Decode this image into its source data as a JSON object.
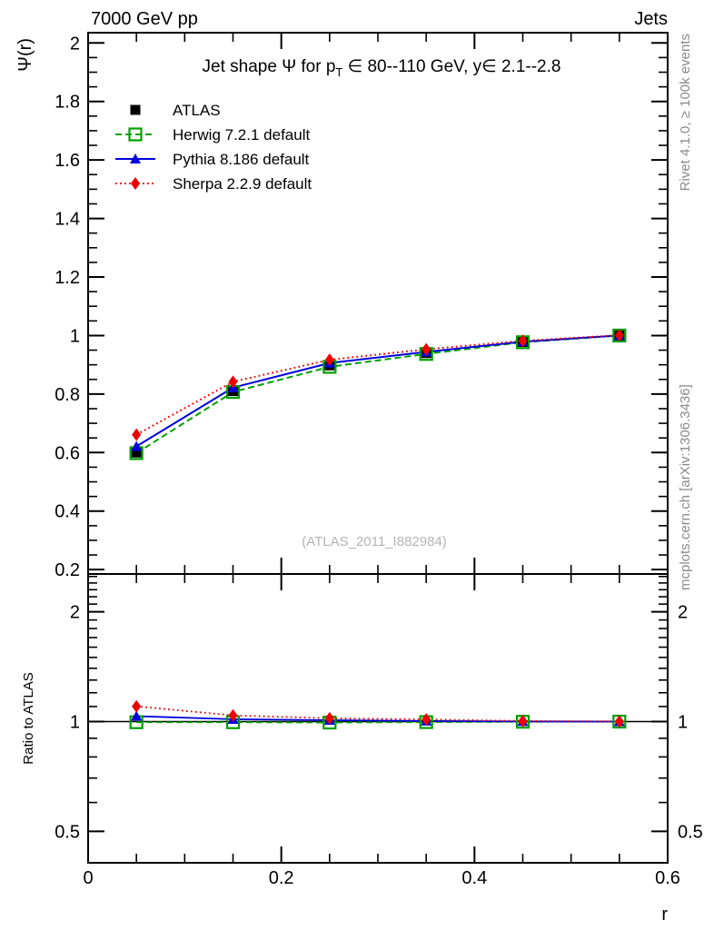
{
  "header": {
    "left": "7000 GeV pp",
    "right": "Jets"
  },
  "title": {
    "prefix": "Jet shape Ψ for p",
    "sub": "T",
    "suffix": " ∈ 80--110 GeV, y∈ 2.1--2.8"
  },
  "watermark": "(ATLAS_2011_I882984)",
  "side_notes": {
    "top": "Rivet 4.1.0, ≥ 100k events",
    "bottom": "mcplots.cern.ch [arXiv:1306.3436]"
  },
  "axes": {
    "x": {
      "label": "r",
      "min": 0,
      "max": 0.6,
      "major_ticks": [
        0,
        0.2,
        0.4,
        0.6
      ],
      "minor_step": 0.05
    },
    "y_main": {
      "label": "Ψ(r)",
      "min": 0.185,
      "max": 2.035,
      "major_ticks": [
        0.2,
        0.4,
        0.6,
        0.8,
        1,
        1.2,
        1.4,
        1.6,
        1.8,
        2
      ],
      "minor_step": 0.05
    },
    "y_ratio": {
      "label": "Ratio to ATLAS",
      "scale": "log",
      "min": 0.41,
      "max": 2.54,
      "major_ticks": [
        0.5,
        1,
        2
      ],
      "minor_ticks": [
        0.6,
        0.7,
        0.8,
        0.9,
        1.1,
        1.2,
        1.3,
        1.4,
        1.5,
        1.6,
        1.7,
        1.8,
        1.9,
        2.1,
        2.2,
        2.3,
        2.4,
        2.5
      ]
    }
  },
  "chart_data": {
    "type": "line",
    "title": "Jet shape Ψ for pT ∈ 80--110 GeV, y∈ 2.1--2.8",
    "xlabel": "r",
    "ylabel": "Ψ(r)",
    "ratio_label": "Ratio to ATLAS",
    "xlim": [
      0,
      0.6
    ],
    "ylim_main": [
      0.185,
      2.035
    ],
    "ylim_ratio_log": [
      0.41,
      2.54
    ],
    "grid": false,
    "legend_position": "top-left-inside",
    "x": [
      0.05,
      0.15,
      0.25,
      0.35,
      0.45,
      0.55
    ],
    "series": [
      {
        "name": "ATLAS",
        "color": "#000000",
        "marker": "square-filled",
        "line": "none",
        "values": [
          0.6,
          0.81,
          0.898,
          0.94,
          0.978,
          1.0
        ],
        "ratio": null
      },
      {
        "name": "Herwig 7.2.1 default",
        "color": "#00a000",
        "marker": "square-open",
        "line": "dashed",
        "values": [
          0.598,
          0.807,
          0.893,
          0.937,
          0.977,
          1.0
        ],
        "ratio": [
          0.996,
          0.996,
          0.994,
          0.997,
          0.999,
          1.0
        ]
      },
      {
        "name": "Pythia 8.186 default",
        "color": "#0000dd",
        "marker": "triangle-filled",
        "line": "solid",
        "values": [
          0.621,
          0.822,
          0.906,
          0.944,
          0.979,
          1.0
        ],
        "ratio": [
          1.035,
          1.015,
          1.009,
          1.004,
          1.001,
          1.0
        ]
      },
      {
        "name": "Sherpa 2.2.9 default",
        "color": "#ee0000",
        "marker": "diamond-filled",
        "line": "dotted",
        "values": [
          0.661,
          0.842,
          0.917,
          0.953,
          0.982,
          1.001
        ],
        "ratio": [
          1.101,
          1.04,
          1.021,
          1.014,
          1.004,
          1.001
        ]
      }
    ]
  }
}
